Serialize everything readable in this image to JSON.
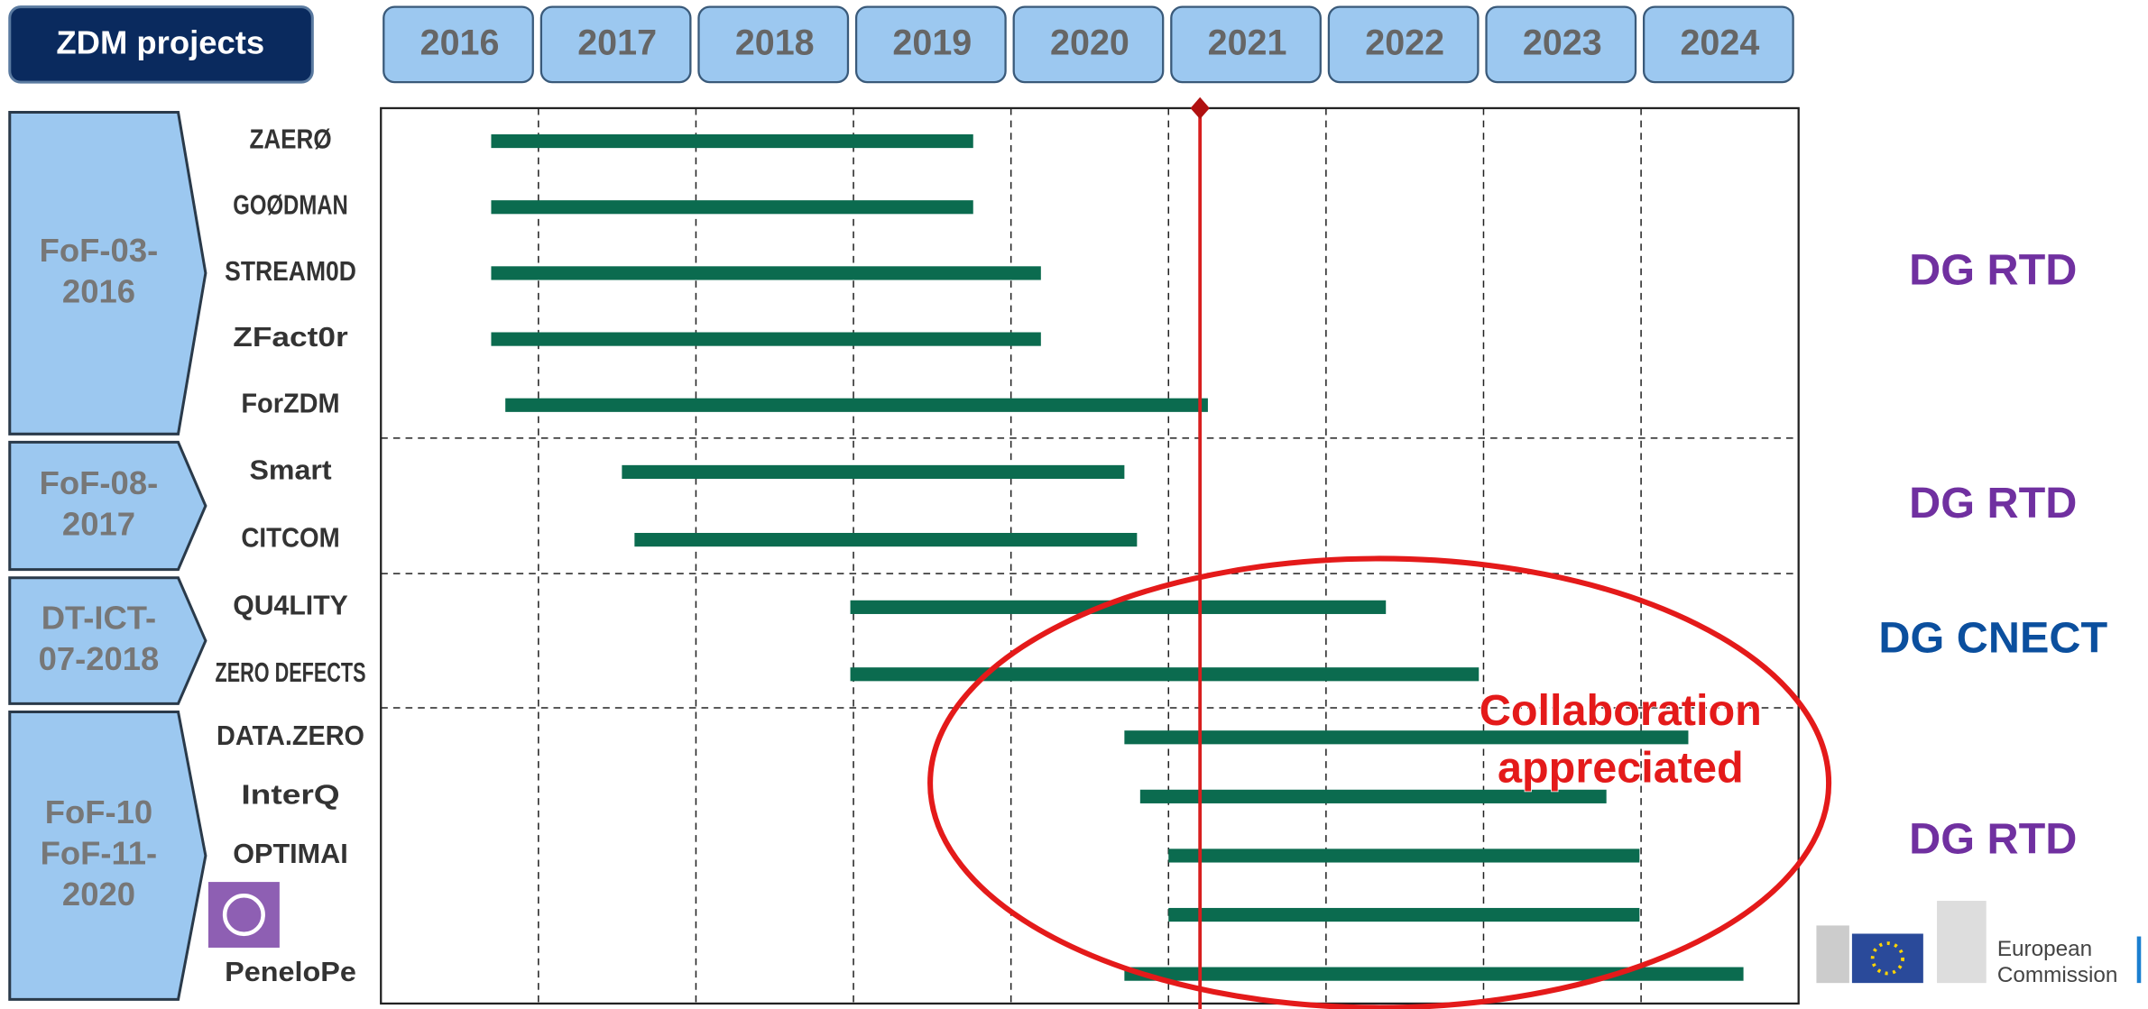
{
  "chart_data": {
    "type": "gantt",
    "title": "ZDM projects",
    "xlim": [
      2016,
      2025
    ],
    "xticks": [
      2016,
      2017,
      2018,
      2019,
      2020,
      2021,
      2022,
      2023,
      2024
    ],
    "grid": true,
    "bar_color": "#0b6b4f",
    "marker": {
      "value": 2021.2,
      "color": "#d81e1e"
    },
    "groups": [
      {
        "name": [
          "FoF-03-",
          "2016"
        ],
        "owner": "DG RTD",
        "owner_color": "#7030a0",
        "tasks": [
          {
            "label": "ZAERØ",
            "start": 2016.7,
            "end": 2019.76
          },
          {
            "label": "GOØDMAN",
            "start": 2016.7,
            "end": 2019.76
          },
          {
            "label": "STREAM0D",
            "start": 2016.7,
            "end": 2020.19
          },
          {
            "label": "ZFact0r",
            "start": 2016.7,
            "end": 2020.19
          },
          {
            "label": "ForZDM",
            "start": 2016.79,
            "end": 2021.25
          }
        ]
      },
      {
        "name": [
          "FoF-08-",
          "2017"
        ],
        "owner": "DG RTD",
        "owner_color": "#7030a0",
        "tasks": [
          {
            "label": "Smart",
            "start": 2017.53,
            "end": 2020.72
          },
          {
            "label": "CITCOM",
            "start": 2017.61,
            "end": 2020.8
          }
        ]
      },
      {
        "name": [
          "DT-ICT-",
          "07-2018"
        ],
        "owner": "DG CNECT",
        "owner_color": "#0b4f9e",
        "tasks": [
          {
            "label": "QU4LITY",
            "start": 2018.98,
            "end": 2022.38
          },
          {
            "label": "ZERO DEFECTS",
            "start": 2018.98,
            "end": 2022.97
          }
        ]
      },
      {
        "name": [
          "FoF-10",
          "FoF-11-",
          "2020"
        ],
        "owner": "DG RTD",
        "owner_color": "#7030a0",
        "tasks": [
          {
            "label": "DATA.ZERO",
            "start": 2020.72,
            "end": 2024.3
          },
          {
            "label": "InterQ",
            "start": 2020.82,
            "end": 2023.78
          },
          {
            "label": "OPTIMAI",
            "start": 2021.0,
            "end": 2023.99
          },
          {
            "label": null,
            "start": 2021.0,
            "end": 2023.99
          },
          {
            "label": "PeneloPe",
            "start": 2020.72,
            "end": 2024.65
          }
        ]
      }
    ],
    "annotation": [
      "Collaboration",
      "appreciated"
    ],
    "footer": [
      "European",
      "Commission"
    ]
  }
}
